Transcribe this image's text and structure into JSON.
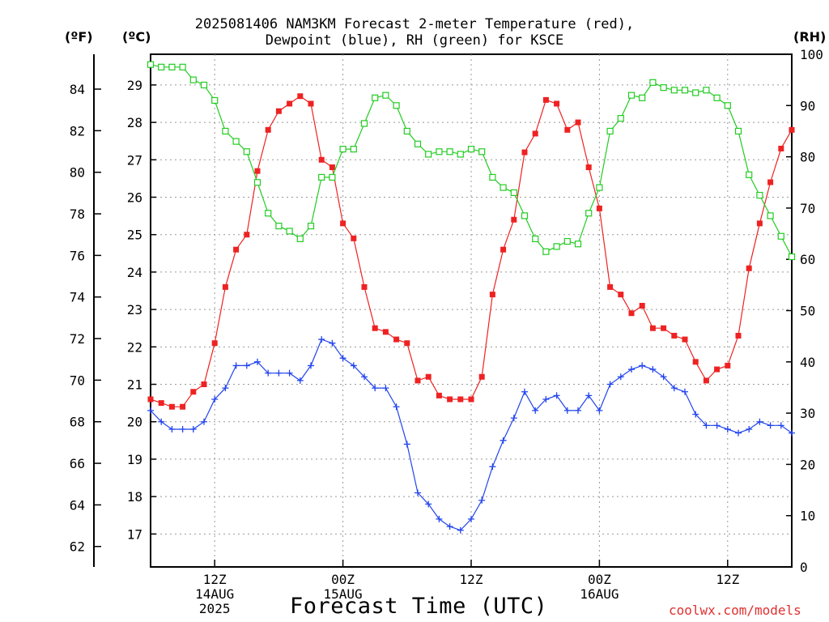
{
  "title": {
    "line1": "2025081406 NAM3KM Forecast 2-meter Temperature (red),",
    "line2": "Dewpoint (blue), RH (green) for KSCE"
  },
  "units": {
    "f": "(ºF)",
    "c": "(ºC)",
    "rh": "(RH)"
  },
  "xlabel": "Forecast Time (UTC)",
  "credit": "coolwx.com/models",
  "colors": {
    "temp": "#ee2222",
    "dewpoint": "#2244ee",
    "rh": "#22cc22",
    "grid": "#999999"
  },
  "chart_data": {
    "type": "line",
    "x_step_hours": 1,
    "x_ticks": [
      {
        "hour": 6,
        "lines": [
          "12Z",
          "14AUG",
          "2025"
        ]
      },
      {
        "hour": 18,
        "lines": [
          "00Z",
          "15AUG"
        ]
      },
      {
        "hour": 30,
        "lines": [
          "12Z"
        ]
      },
      {
        "hour": 42,
        "lines": [
          "00Z",
          "16AUG"
        ]
      },
      {
        "hour": 54,
        "lines": [
          "12Z"
        ]
      }
    ],
    "y_left_c": {
      "ticks": [
        17,
        18,
        19,
        20,
        21,
        22,
        23,
        24,
        25,
        26,
        27,
        28,
        29
      ],
      "range": [
        16.12,
        29.82
      ]
    },
    "y_left_f": {
      "ticks": [
        62,
        64,
        66,
        68,
        70,
        72,
        74,
        76,
        78,
        80,
        82,
        84
      ]
    },
    "y_right_rh": {
      "ticks": [
        0,
        10,
        20,
        30,
        40,
        50,
        60,
        70,
        80,
        90,
        100
      ],
      "range": [
        0,
        100
      ]
    },
    "grid": true,
    "series": [
      {
        "key": "temp",
        "axis": "C",
        "marker": "filled-square",
        "values": [
          20.6,
          20.5,
          20.4,
          20.4,
          20.8,
          21.0,
          22.1,
          23.6,
          24.6,
          25.0,
          26.7,
          27.8,
          28.3,
          28.5,
          28.7,
          28.5,
          27.0,
          26.8,
          25.3,
          24.9,
          23.6,
          22.5,
          22.4,
          22.2,
          22.1,
          21.1,
          21.2,
          20.7,
          20.6,
          20.6,
          20.6,
          21.2,
          23.4,
          24.6,
          25.4,
          27.2,
          27.7,
          28.6,
          28.5,
          27.8,
          28.0,
          26.8,
          25.7,
          23.6,
          23.4,
          22.9,
          23.1,
          22.5,
          22.5,
          22.3,
          22.2,
          21.6,
          21.1,
          21.4,
          21.5,
          22.3,
          24.1,
          25.3,
          26.4,
          27.3,
          27.8
        ]
      },
      {
        "key": "dewpoint",
        "axis": "C",
        "marker": "plus",
        "values": [
          20.3,
          20.0,
          19.8,
          19.8,
          19.8,
          20.0,
          20.6,
          20.9,
          21.5,
          21.5,
          21.6,
          21.3,
          21.3,
          21.3,
          21.1,
          21.5,
          22.2,
          22.1,
          21.7,
          21.5,
          21.2,
          20.9,
          20.9,
          20.4,
          19.4,
          18.1,
          17.8,
          17.4,
          17.2,
          17.1,
          17.4,
          17.9,
          18.8,
          19.5,
          20.1,
          20.8,
          20.3,
          20.6,
          20.7,
          20.3,
          20.3,
          20.7,
          20.3,
          21.0,
          21.2,
          21.4,
          21.5,
          21.4,
          21.2,
          20.9,
          20.8,
          20.2,
          19.9,
          19.9,
          19.8,
          19.7,
          19.8,
          20.0,
          19.9,
          19.9,
          19.7
        ]
      },
      {
        "key": "rh",
        "axis": "RH",
        "marker": "open-square",
        "values": [
          98,
          97.5,
          97.5,
          97.5,
          95,
          94,
          91,
          85,
          83,
          81,
          75,
          69,
          66.5,
          65.5,
          64,
          66.5,
          76,
          76,
          81.5,
          81.5,
          86.5,
          91.5,
          92,
          90,
          85,
          82.5,
          80.5,
          81,
          81,
          80.5,
          81.5,
          81,
          76,
          74,
          73,
          68.5,
          64,
          61.5,
          62.5,
          63.5,
          63,
          69,
          74,
          85,
          87.5,
          92,
          91.5,
          94.5,
          93.5,
          93,
          93,
          92.5,
          93,
          91.5,
          90,
          85,
          76.5,
          72.5,
          68.5,
          64.5,
          60.5
        ]
      }
    ]
  }
}
